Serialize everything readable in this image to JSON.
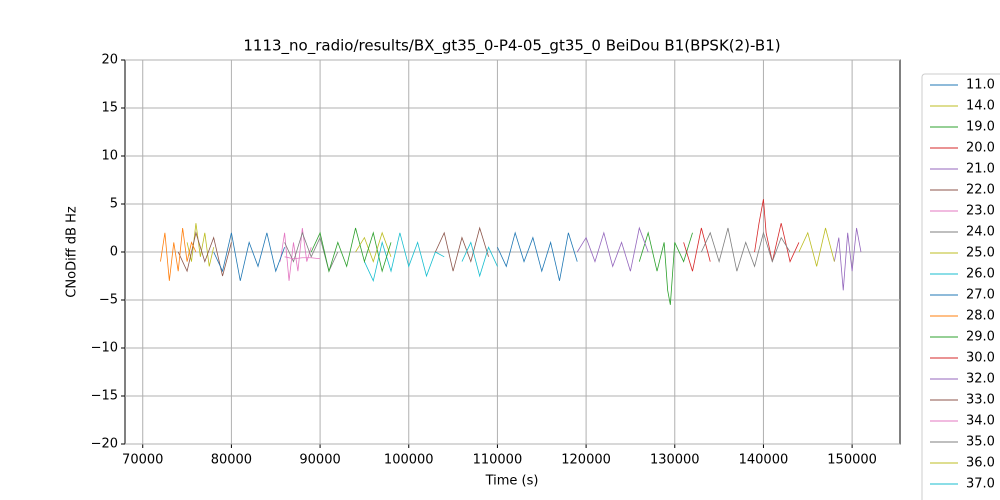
{
  "chart_data": {
    "type": "line",
    "title": "1113_no_radio/results/BX_gt35_0-P4-05_gt35_0 BeiDou B1(BPSK(2)-B1)",
    "x_label": "Time (s)",
    "y_label": "CNoDiff dB Hz",
    "xlim": [
      68000,
      155400
    ],
    "ylim": [
      -20,
      20
    ],
    "xticks": [
      70000,
      80000,
      90000,
      100000,
      110000,
      120000,
      130000,
      140000,
      150000
    ],
    "yticks": [
      {
        "value": -20,
        "label": "−20"
      },
      {
        "value": -15,
        "label": "−15"
      },
      {
        "value": -10,
        "label": "−10"
      },
      {
        "value": -5,
        "label": "−5"
      },
      0,
      5,
      10,
      15,
      20
    ],
    "grid": true,
    "legend": "outside right",
    "series": [
      {
        "name": "11.0",
        "color": "#1f77b4",
        "x": [
          110000,
          111000,
          112000,
          113000,
          114000,
          115000,
          116000,
          117000,
          118000,
          119000
        ],
        "values": [
          0.5,
          -1.5,
          2,
          -1,
          1.5,
          -2,
          1,
          -3,
          2,
          -1
        ]
      },
      {
        "name": "14.0",
        "color": "#bcbd22",
        "x": [
          75000,
          75500,
          76000,
          76500,
          77000,
          77500,
          78000
        ],
        "values": [
          1,
          -1,
          3,
          -0.5,
          2,
          -1.5,
          0.5
        ]
      },
      {
        "name": "19.0",
        "color": "#2ca02c",
        "x": [
          126000,
          127000,
          128000,
          128800,
          129200,
          129500,
          130000,
          131000,
          132000
        ],
        "values": [
          -1,
          2,
          -2,
          1,
          -4,
          -5.5,
          1,
          -1,
          2
        ]
      },
      {
        "name": "20.0",
        "color": "#d62728",
        "x": [
          139000,
          139500,
          140000,
          140300,
          141000,
          142000,
          143000,
          144000
        ],
        "values": [
          0,
          3,
          5.5,
          2,
          -1,
          3,
          -1,
          1
        ]
      },
      {
        "name": "21.0",
        "color": "#9467bd",
        "x": [
          148000,
          148500,
          149000,
          149500,
          150000,
          150500,
          151000
        ],
        "values": [
          -1,
          1.5,
          -4,
          2,
          -2,
          2.5,
          0
        ]
      },
      {
        "name": "22.0",
        "color": "#8c564b",
        "x": [
          74000,
          75000,
          76000,
          77000,
          78000,
          79000,
          80000
        ],
        "values": [
          0,
          -2,
          2,
          -1,
          1.5,
          -2.5,
          1
        ]
      },
      {
        "name": "23.0",
        "color": "#e377c2",
        "x": [
          85500,
          86000,
          86500,
          87000,
          87500,
          88000,
          88500,
          89000
        ],
        "values": [
          -1,
          2,
          -3,
          1,
          -2,
          2.5,
          -1,
          0.5
        ]
      },
      {
        "name": "24.0",
        "color": "#7f7f7f",
        "x": [
          86000,
          87000,
          88000,
          89000,
          90000,
          91000,
          92000
        ],
        "values": [
          1,
          -1,
          2,
          -0.5,
          1.5,
          -2,
          0
        ]
      },
      {
        "name": "25.0",
        "color": "#bcbd22",
        "x": [
          94000,
          95000,
          96000,
          97000,
          98000
        ],
        "values": [
          0,
          1.5,
          -1,
          2,
          -0.5
        ]
      },
      {
        "name": "26.0",
        "color": "#17becf",
        "x": [
          95000,
          96000,
          97000,
          98000,
          99000,
          100000,
          101000,
          102000,
          103000,
          104000
        ],
        "values": [
          -1,
          -3,
          1,
          -2,
          2,
          -1.5,
          1,
          -2.5,
          0,
          -0.5
        ]
      },
      {
        "name": "27.0",
        "color": "#1f77b4",
        "x": [
          78000,
          79000,
          80000,
          81000,
          82000,
          83000,
          84000,
          85000,
          86000
        ],
        "values": [
          0,
          -2,
          2,
          -3,
          1,
          -1.5,
          2,
          -2,
          0.5
        ]
      },
      {
        "name": "28.0",
        "color": "#ff7f0e",
        "x": [
          72000,
          72500,
          73000,
          73500,
          74000,
          74500,
          75000,
          75500,
          76000
        ],
        "values": [
          -1,
          2,
          -3,
          1,
          -2,
          2.5,
          -1,
          1,
          0
        ]
      },
      {
        "name": "29.0",
        "color": "#2ca02c",
        "x": [
          89000,
          90000,
          91000,
          92000,
          93000,
          94000,
          95000,
          96000,
          97000,
          98000
        ],
        "values": [
          0,
          2,
          -2,
          1,
          -1.5,
          2.5,
          -1,
          2,
          -2,
          1
        ]
      },
      {
        "name": "30.0",
        "color": "#d62728",
        "x": [
          131000,
          132000,
          133000,
          134000
        ],
        "values": [
          1,
          -2,
          2.5,
          -1
        ]
      },
      {
        "name": "32.0",
        "color": "#9467bd",
        "x": [
          119000,
          120000,
          121000,
          122000,
          123000,
          124000,
          125000,
          126000,
          127000
        ],
        "values": [
          0,
          1.5,
          -1,
          2,
          -1.5,
          1,
          -2,
          2.5,
          0
        ]
      },
      {
        "name": "33.0",
        "color": "#8c564b",
        "x": [
          103000,
          104000,
          105000,
          106000,
          107000,
          108000,
          109000
        ],
        "values": [
          0,
          2,
          -2,
          1.5,
          -1,
          2.5,
          -0.5
        ]
      },
      {
        "name": "34.0",
        "color": "#e377c2",
        "x": [
          86000,
          87000,
          88000,
          89000,
          90000
        ],
        "values": [
          -0.5,
          -0.7,
          -0.6,
          -0.6,
          -0.7
        ]
      },
      {
        "name": "35.0",
        "color": "#7f7f7f",
        "x": [
          133000,
          134000,
          135000,
          136000,
          137000,
          138000,
          139000,
          140000,
          141000,
          142000,
          143000
        ],
        "values": [
          0,
          2,
          -1,
          2.5,
          -2,
          1,
          -1.5,
          2,
          -1,
          1.5,
          0
        ]
      },
      {
        "name": "36.0",
        "color": "#bcbd22",
        "x": [
          144000,
          145000,
          146000,
          147000,
          148000
        ],
        "values": [
          0,
          2,
          -1.5,
          2.5,
          -1
        ]
      },
      {
        "name": "37.0",
        "color": "#17becf",
        "x": [
          106000,
          107000,
          108000,
          109000,
          110000
        ],
        "values": [
          -1,
          1,
          -2.5,
          0.5,
          -1.5
        ]
      }
    ]
  }
}
